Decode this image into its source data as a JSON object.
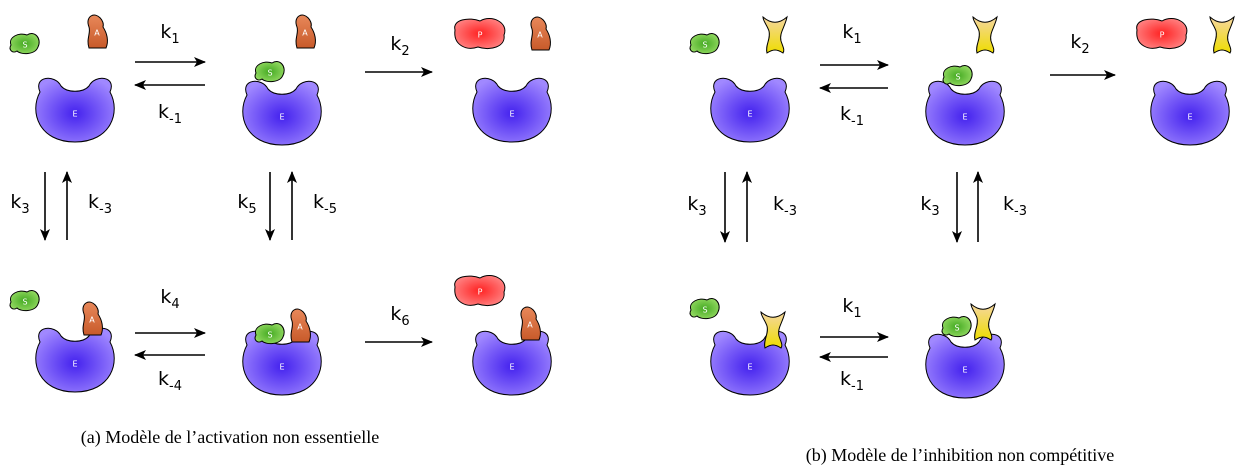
{
  "glyphs": {
    "substrate": "S",
    "activator": "A",
    "enzyme": "E",
    "product": "P"
  },
  "panels": [
    {
      "caption": "(a) Modèle de l’activation non essentielle",
      "rates": [
        {
          "base": "k",
          "sub": "1"
        },
        {
          "base": "k",
          "sub": "-1"
        },
        {
          "base": "k",
          "sub": "2"
        },
        {
          "base": "k",
          "sub": "3"
        },
        {
          "base": "k",
          "sub": "-3"
        },
        {
          "base": "k",
          "sub": "5"
        },
        {
          "base": "k",
          "sub": "-5"
        },
        {
          "base": "k",
          "sub": "4"
        },
        {
          "base": "k",
          "sub": "-4"
        },
        {
          "base": "k",
          "sub": "6"
        }
      ]
    },
    {
      "caption": "(b) Modèle de l’inhibition non compétitive",
      "rates": [
        {
          "base": "k",
          "sub": "1"
        },
        {
          "base": "k",
          "sub": "-1"
        },
        {
          "base": "k",
          "sub": "2"
        },
        {
          "base": "k",
          "sub": "3"
        },
        {
          "base": "k",
          "sub": "-3"
        },
        {
          "base": "k",
          "sub": "3"
        },
        {
          "base": "k",
          "sub": "-3"
        },
        {
          "base": "k",
          "sub": "1"
        },
        {
          "base": "k",
          "sub": "-1"
        }
      ]
    }
  ]
}
